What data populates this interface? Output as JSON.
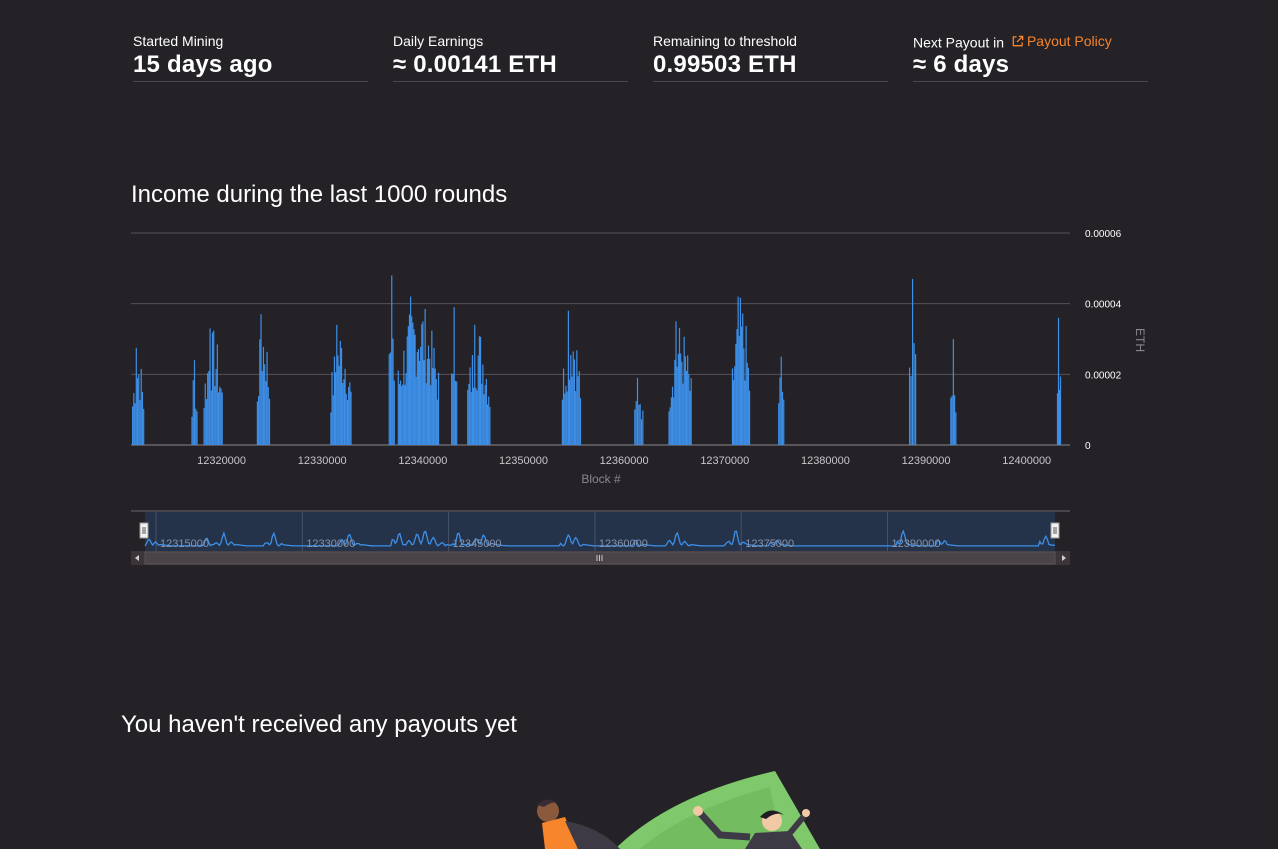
{
  "stats": [
    {
      "label": "Started Mining",
      "value": "15 days ago"
    },
    {
      "label": "Daily Earnings",
      "value": "≈ 0.00141  ETH"
    },
    {
      "label": "Remaining to threshold",
      "value": "0.99503  ETH"
    },
    {
      "label": "Next Payout in",
      "value": "≈ 6 days",
      "link": "Payout Policy"
    }
  ],
  "chart_section": {
    "title": "Income during the last 1000 rounds"
  },
  "chart_data": {
    "type": "bar",
    "xlabel": "Block #",
    "ylabel": "ETH",
    "ylim": [
      0,
      6e-05
    ],
    "xlim": [
      12311000,
      12404300
    ],
    "yticks": [
      "0",
      "0.00002",
      "0.00004",
      "0.00006"
    ],
    "xticks": [
      "12320000",
      "12330000",
      "12340000",
      "12350000",
      "12360000",
      "12370000",
      "12380000",
      "12390000",
      "12400000"
    ],
    "grid": true,
    "bar_color": "#3d8fe8",
    "clusters": [
      {
        "start": 12311100,
        "end": 12312200,
        "peak": 2.75e-05
      },
      {
        "start": 12317000,
        "end": 12317500,
        "peak": 2.4e-05
      },
      {
        "start": 12318200,
        "end": 12320000,
        "peak": 3.3e-05
      },
      {
        "start": 12323500,
        "end": 12324700,
        "peak": 3.7e-05
      },
      {
        "start": 12330800,
        "end": 12332800,
        "peak": 3.4e-05
      },
      {
        "start": 12336600,
        "end": 12337100,
        "peak": 4.8e-05
      },
      {
        "start": 12337500,
        "end": 12341500,
        "peak": 4.2e-05
      },
      {
        "start": 12342800,
        "end": 12343300,
        "peak": 3.9e-05
      },
      {
        "start": 12344400,
        "end": 12346600,
        "peak": 3.4e-05
      },
      {
        "start": 12353800,
        "end": 12355600,
        "peak": 3.8e-05
      },
      {
        "start": 12361000,
        "end": 12361800,
        "peak": 1.9e-05
      },
      {
        "start": 12364400,
        "end": 12366600,
        "peak": 3.5e-05
      },
      {
        "start": 12370700,
        "end": 12372400,
        "peak": 4.2e-05
      },
      {
        "start": 12375300,
        "end": 12375800,
        "peak": 2.5e-05
      },
      {
        "start": 12388300,
        "end": 12388900,
        "peak": 4.7e-05
      },
      {
        "start": 12392400,
        "end": 12392900,
        "peak": 3e-05
      },
      {
        "start": 12403000,
        "end": 12403300,
        "peak": 3.6e-05
      }
    ],
    "navigator": {
      "ticks": [
        "12315000",
        "12330000",
        "12345000",
        "12360000",
        "12375000",
        "12390000"
      ],
      "series_color": "#3d8fe8",
      "fill_color": "#24324a"
    }
  },
  "payouts": {
    "title": "You haven't received any payouts yet"
  },
  "colors": {
    "background": "#242226",
    "accent": "#f7852c",
    "bar": "#3d8fe8"
  },
  "icons": [
    "external-link-icon",
    "scroll-left-icon",
    "scroll-right-icon",
    "grip-icon"
  ]
}
